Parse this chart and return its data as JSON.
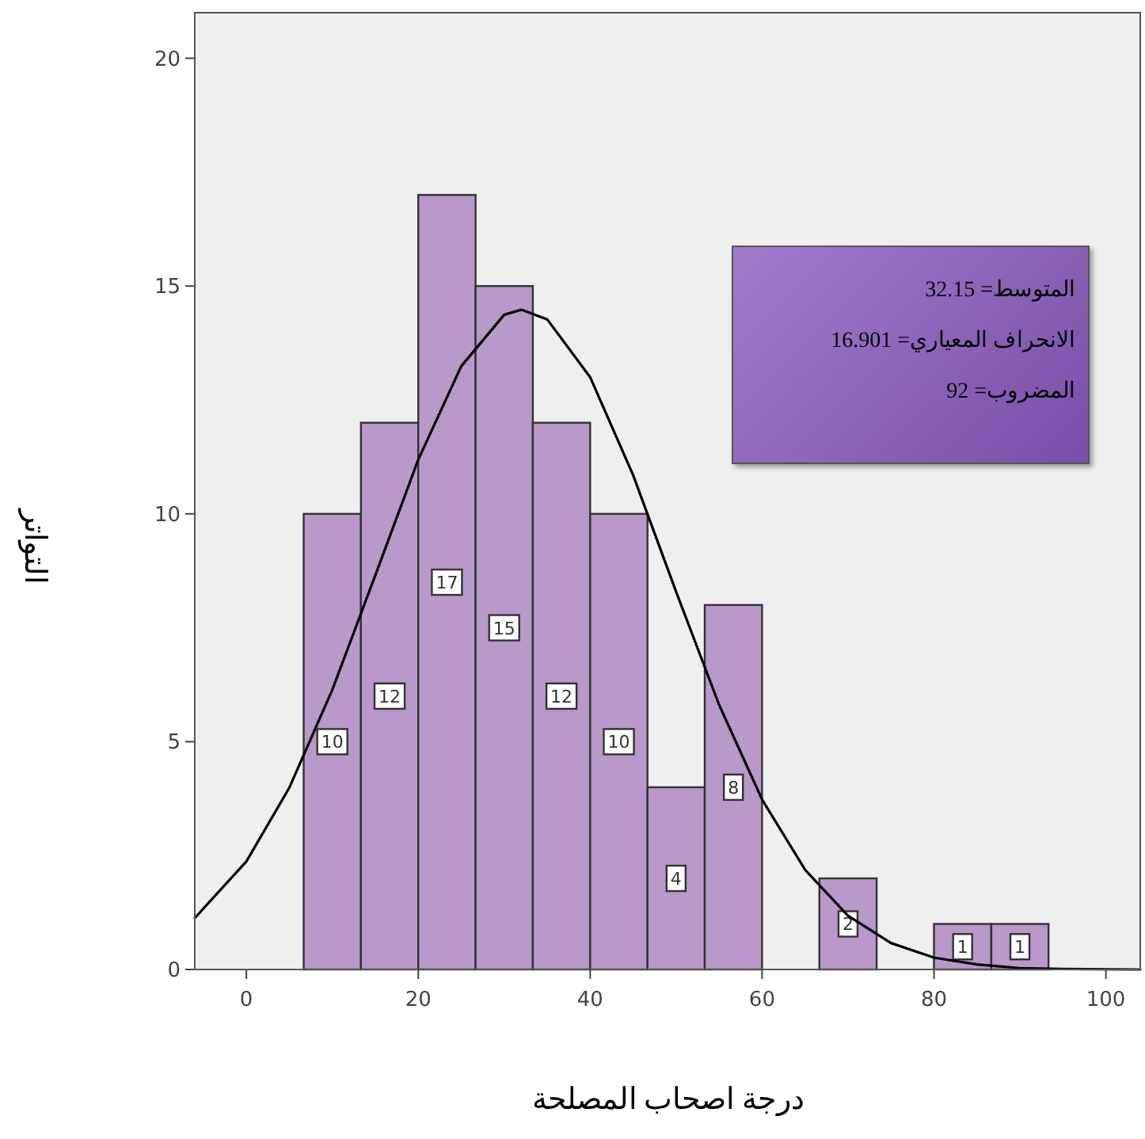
{
  "chart_data": {
    "type": "histogram",
    "xlabel": "درجة  اصحاب المصلحة",
    "ylabel": "التواتر",
    "annotations": [
      "المتوسط= 32.15",
      "الانحراف المعياري= 16.901",
      "المضروب= 92"
    ],
    "series": [
      {
        "color": "#b899c9",
        "bins": [
          6.67,
          13.33,
          20,
          26.67,
          33.33,
          40,
          46.67,
          53.33,
          60,
          66.67,
          73.33,
          80,
          86.67,
          93.33
        ],
        "values": [
          10,
          12,
          17,
          15,
          12,
          10,
          4,
          8,
          0,
          2,
          0,
          1,
          1
        ],
        "value_labels": [
          "10",
          "12",
          "17",
          "15",
          "12",
          "10",
          "4",
          "8",
          null,
          "2",
          null,
          "1",
          "1"
        ]
      },
      {
        "type": "line",
        "color": "#000000",
        "x": [
          -6,
          0,
          5,
          10,
          15,
          20,
          25,
          30,
          32,
          35,
          40,
          45,
          50,
          55,
          60,
          65,
          70,
          75,
          80,
          85,
          90,
          95,
          104
        ],
        "values": [
          1.13,
          2.37,
          3.99,
          6.14,
          8.65,
          11.19,
          13.24,
          14.37,
          14.48,
          14.27,
          13.0,
          10.85,
          8.29,
          5.81,
          3.73,
          2.19,
          1.18,
          0.58,
          0.26,
          0.11,
          0.03,
          0.01,
          0
        ]
      }
    ],
    "xlim": [
      -6,
      104
    ],
    "ylim": [
      0,
      21
    ],
    "xticks": [
      0,
      20,
      40,
      60,
      80,
      100
    ],
    "yticks": [
      0,
      5,
      10,
      15,
      20
    ]
  }
}
